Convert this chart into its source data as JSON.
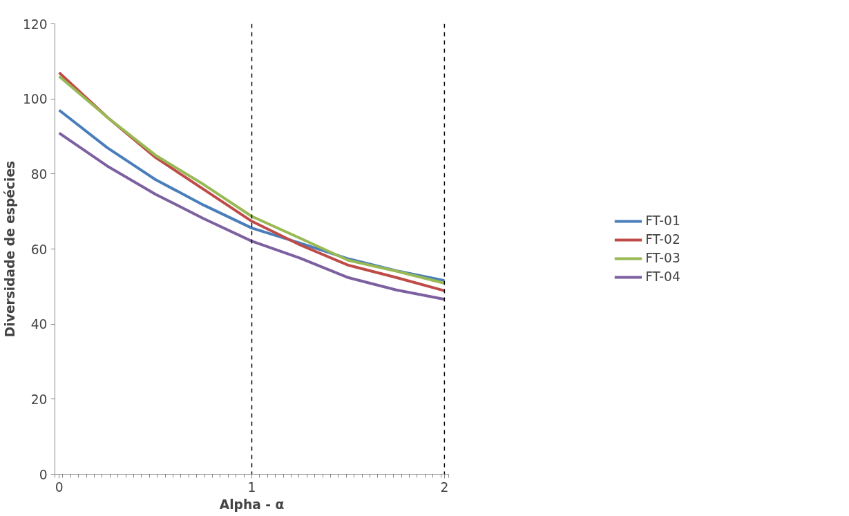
{
  "chart_data": {
    "type": "line",
    "xlabel": "Alpha - α",
    "ylabel": "Diversidade de espécies",
    "x": [
      0,
      0.25,
      0.5,
      0.75,
      1,
      1.25,
      1.5,
      1.75,
      2
    ],
    "series": [
      {
        "name": "FT-01",
        "color": "#4a7ebb",
        "values": [
          97,
          87,
          78.5,
          71.7,
          65.6,
          61.6,
          57.4,
          54.2,
          51.6
        ]
      },
      {
        "name": "FT-02",
        "color": "#be4b48",
        "values": [
          107,
          95.1,
          84.4,
          75.9,
          67.4,
          61.1,
          55.7,
          52.4,
          48.9
        ]
      },
      {
        "name": "FT-03",
        "color": "#98b954",
        "values": [
          106,
          95.1,
          85,
          77.2,
          68.7,
          62.9,
          57,
          54.1,
          50.9
        ]
      },
      {
        "name": "FT-04",
        "color": "#7d60a0",
        "values": [
          90.9,
          82.1,
          74.6,
          68.1,
          62.1,
          57.6,
          52.4,
          49.1,
          46.6
        ]
      }
    ],
    "xlim": [
      -0.022,
      2.022
    ],
    "xticks": [
      0,
      1,
      2
    ],
    "ylim": [
      0,
      120
    ],
    "yticks": [
      0,
      20,
      40,
      60,
      80,
      100,
      120
    ],
    "ref_lines": [
      {
        "axis": "x",
        "value": 1,
        "color": "#000000",
        "line_style": "dashed"
      },
      {
        "axis": "x",
        "value": 2,
        "color": "#000000",
        "line_style": "dashed"
      }
    ],
    "grid": false,
    "legend": "right",
    "marker": "none",
    "line_style": "solid"
  }
}
